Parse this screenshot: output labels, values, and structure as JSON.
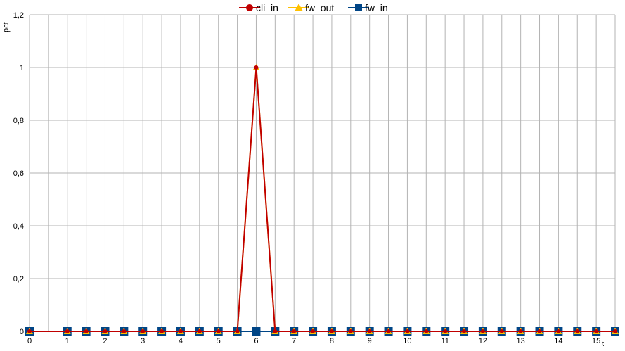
{
  "chart_data": {
    "type": "line",
    "xlabel": "t",
    "ylabel": "pct",
    "xlim": [
      0,
      15.5
    ],
    "ylim": [
      0,
      1.2
    ],
    "x_ticks": [
      "0",
      "1",
      "2",
      "3",
      "4",
      "5",
      "6",
      "7",
      "8",
      "9",
      "10",
      "11",
      "12",
      "13",
      "14",
      "15"
    ],
    "y_ticks": [
      "0",
      "0,2",
      "0,4",
      "0,6",
      "0,8",
      "1",
      "1,2"
    ],
    "grid": true,
    "legend_position": "top",
    "x": [
      0,
      1,
      1.5,
      2,
      2.5,
      3,
      3.5,
      4,
      4.5,
      5,
      5.5,
      6,
      6.5,
      7,
      7.5,
      8,
      8.5,
      9,
      9.5,
      10,
      10.5,
      11,
      11.5,
      12,
      12.5,
      13,
      13.5,
      14,
      14.5,
      15,
      15.5
    ],
    "series": [
      {
        "name": "cli_in",
        "color": "#c00000",
        "marker": "circle",
        "values": [
          0,
          0,
          0,
          0,
          0,
          0,
          0,
          0,
          0,
          0,
          0,
          1,
          0,
          0,
          0,
          0,
          0,
          0,
          0,
          0,
          0,
          0,
          0,
          0,
          0,
          0,
          0,
          0,
          0,
          0,
          0
        ]
      },
      {
        "name": "fw_out",
        "color": "#ffc000",
        "marker": "triangle",
        "values": [
          0,
          0,
          0,
          0,
          0,
          0,
          0,
          0,
          0,
          0,
          0,
          1,
          0,
          0,
          0,
          0,
          0,
          0,
          0,
          0,
          0,
          0,
          0,
          0,
          0,
          0,
          0,
          0,
          0,
          0,
          0
        ]
      },
      {
        "name": "fw_in",
        "color": "#004586",
        "marker": "square",
        "values": [
          0,
          0,
          0,
          0,
          0,
          0,
          0,
          0,
          0,
          0,
          0,
          0,
          0,
          0,
          0,
          0,
          0,
          0,
          0,
          0,
          0,
          0,
          0,
          0,
          0,
          0,
          0,
          0,
          0,
          0,
          0
        ]
      }
    ]
  }
}
